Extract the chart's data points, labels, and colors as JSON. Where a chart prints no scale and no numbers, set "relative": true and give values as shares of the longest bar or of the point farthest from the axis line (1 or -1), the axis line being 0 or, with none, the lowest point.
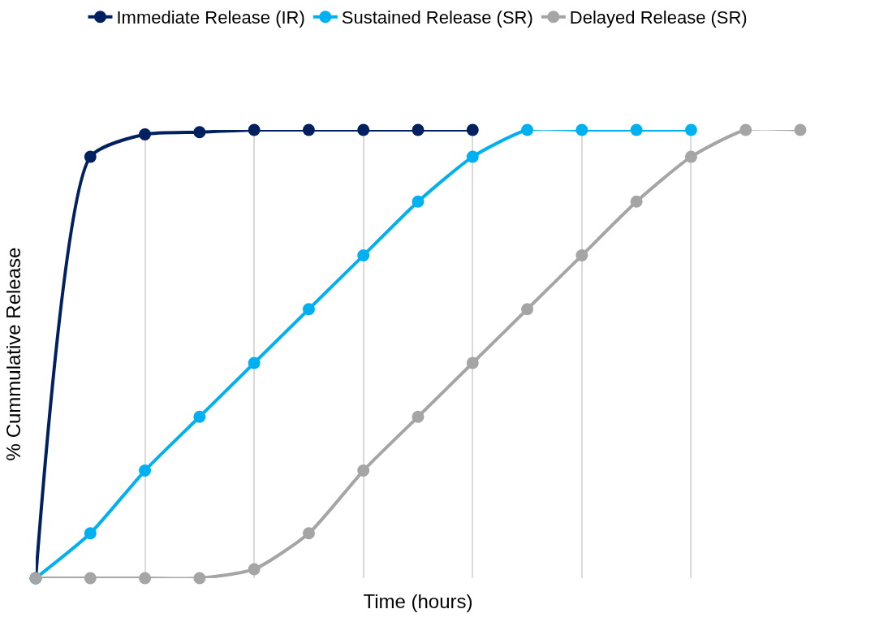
{
  "chart_data": {
    "type": "line",
    "relative": true,
    "xlabel": "Time (hours)",
    "ylabel": "% Cummulative Release",
    "categories": [
      null,
      null,
      null,
      null,
      null,
      null,
      null,
      null,
      null,
      null,
      null,
      null,
      null,
      null,
      null
    ],
    "series": [
      {
        "name": "Immediate Release (IR)",
        "color": "#002060",
        "values": [
          0,
          0.94,
          0.99,
          0.995,
          1,
          1,
          1,
          1,
          1,
          null,
          null,
          null,
          null,
          null,
          null
        ]
      },
      {
        "name": "Sustained Release (SR)",
        "color": "#00b0f0",
        "values": [
          0,
          0.1,
          0.24,
          0.36,
          0.48,
          0.6,
          0.72,
          0.84,
          0.94,
          1,
          1,
          1,
          1,
          null,
          null
        ]
      },
      {
        "name": "Delayed Release (SR)",
        "color": "#a5a5a5",
        "values": [
          0,
          0,
          0,
          0,
          0.02,
          0.1,
          0.24,
          0.36,
          0.48,
          0.6,
          0.72,
          0.84,
          0.94,
          1,
          1
        ]
      }
    ],
    "grid": "x",
    "legend": "top",
    "marker": "circle",
    "line_style": "solid"
  }
}
